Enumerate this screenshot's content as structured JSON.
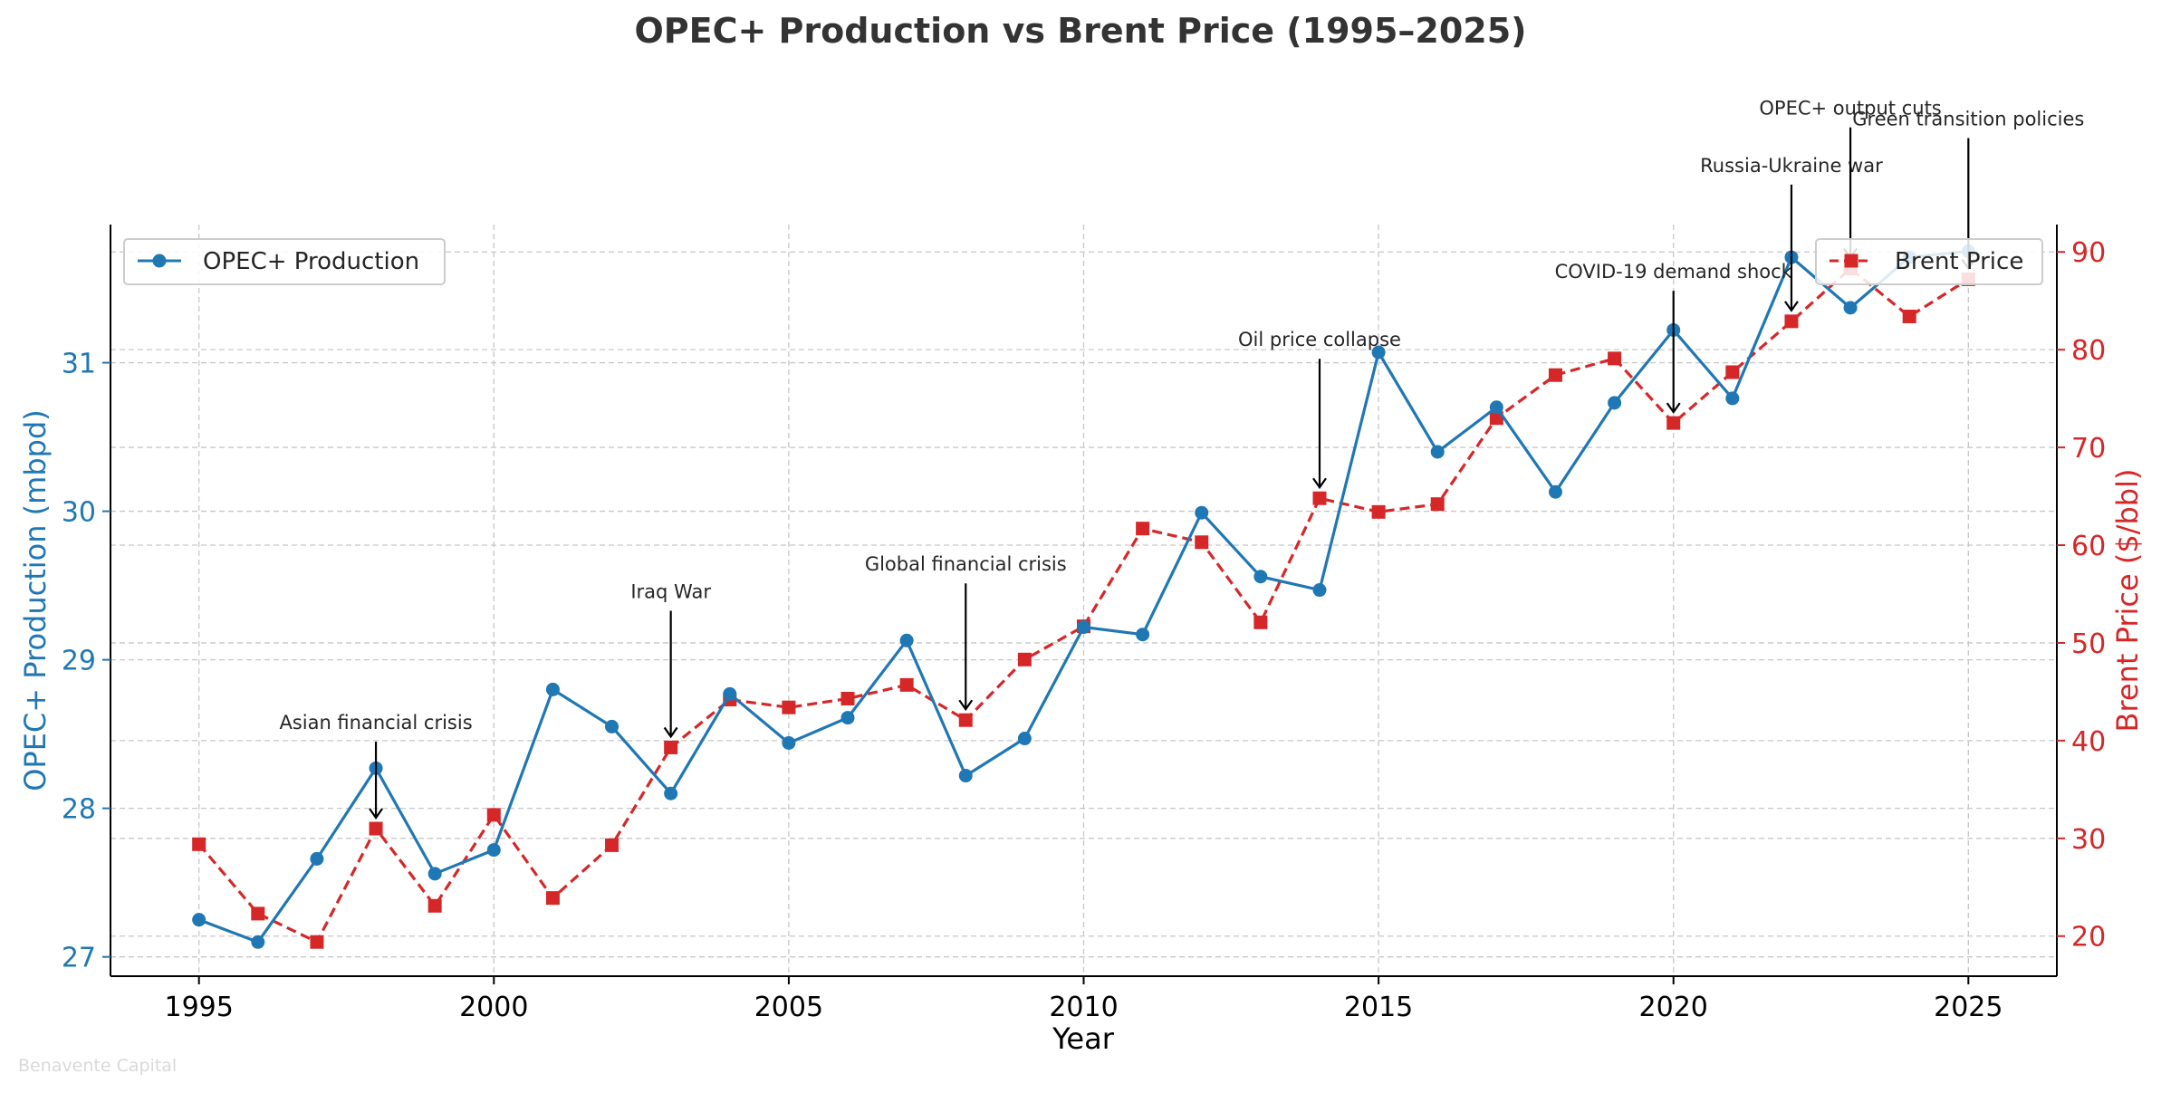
{
  "title": "OPEC+ Production vs Brent Price (1995–2025)",
  "watermark": "Benavente Capital",
  "colors": {
    "production": "#1f77b4",
    "price": "#d62728",
    "grid": "#c8c8c8",
    "axis": "#000000",
    "annotation": "#000000"
  },
  "chart_data": {
    "type": "line",
    "title": "OPEC+ Production vs Brent Price (1995–2025)",
    "xlabel": "Year",
    "ylabel_left": "OPEC+ Production (mbpd)",
    "ylabel_right": "Brent Price ($/bbl)",
    "xlim": [
      1993.5,
      2026.5
    ],
    "ylim_left": [
      26.87,
      31.93
    ],
    "ylim_right": [
      15.9,
      92.8
    ],
    "x_ticks": [
      1995,
      2000,
      2005,
      2010,
      2015,
      2020,
      2025
    ],
    "y_left_ticks": [
      27,
      28,
      29,
      30,
      31
    ],
    "y_right_ticks": [
      20,
      30,
      40,
      50,
      60,
      70,
      80,
      90
    ],
    "grid": true,
    "x": [
      1995,
      1996,
      1997,
      1998,
      1999,
      2000,
      2001,
      2002,
      2003,
      2004,
      2005,
      2006,
      2007,
      2008,
      2009,
      2010,
      2011,
      2012,
      2013,
      2014,
      2015,
      2016,
      2017,
      2018,
      2019,
      2020,
      2021,
      2022,
      2023,
      2024,
      2025
    ],
    "series": [
      {
        "name": "OPEC+ Production",
        "axis": "left",
        "style": "solid",
        "marker": "circle",
        "values": [
          27.25,
          27.1,
          27.66,
          28.27,
          27.56,
          27.72,
          28.8,
          28.55,
          28.1,
          28.77,
          28.44,
          28.61,
          29.13,
          28.22,
          28.47,
          29.22,
          29.17,
          29.99,
          29.56,
          29.47,
          31.07,
          30.4,
          30.7,
          30.13,
          30.73,
          31.22,
          30.76,
          31.71,
          31.37,
          31.71,
          31.75
        ]
      },
      {
        "name": "Brent Price",
        "axis": "right",
        "style": "dashed",
        "marker": "square",
        "values": [
          29.4,
          22.3,
          19.4,
          31.0,
          23.1,
          32.4,
          23.9,
          29.3,
          39.3,
          44.2,
          43.4,
          44.3,
          45.7,
          42.1,
          48.3,
          51.7,
          61.7,
          60.3,
          52.1,
          64.8,
          63.4,
          64.2,
          73.0,
          77.4,
          79.1,
          72.5,
          77.7,
          82.9,
          88.3,
          83.4,
          87.2
        ]
      }
    ],
    "legends": [
      {
        "label": "OPEC+ Production",
        "placement": "upper-left"
      },
      {
        "label": "Brent Price",
        "placement": "upper-right"
      }
    ],
    "annotations": [
      {
        "text": "Asian financial crisis",
        "year": 1998,
        "target_price": 31.0
      },
      {
        "text": "Iraq War",
        "year": 2003,
        "target_price": 39.3
      },
      {
        "text": "Global financial crisis",
        "year": 2008,
        "target_price": 42.1
      },
      {
        "text": "Oil price collapse",
        "year": 2014,
        "target_price": 64.8
      },
      {
        "text": "COVID-19 demand shock",
        "year": 2020,
        "target_price": 72.5
      },
      {
        "text": "Russia-Ukraine war",
        "year": 2022,
        "target_price": 82.9
      },
      {
        "text": "OPEC+ output cuts",
        "year": 2023,
        "target_price": 88.3
      },
      {
        "text": "Green transition policies",
        "year": 2025,
        "target_price": 87.2
      }
    ]
  }
}
